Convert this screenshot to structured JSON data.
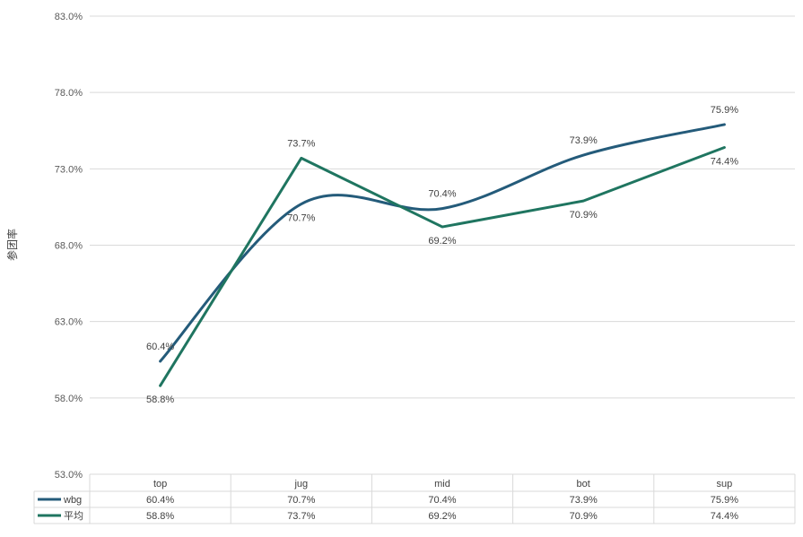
{
  "chart_data": {
    "type": "line",
    "title": "",
    "xlabel": "",
    "ylabel": "参团率",
    "categories": [
      "top",
      "jug",
      "mid",
      "bot",
      "sup"
    ],
    "yticks": [
      "53.0%",
      "58.0%",
      "63.0%",
      "68.0%",
      "73.0%",
      "78.0%",
      "83.0%"
    ],
    "ylim": [
      53,
      83
    ],
    "grid": true,
    "series": [
      {
        "name": "wbg",
        "color": "#245b7a",
        "smooth": true,
        "values": [
          60.4,
          70.7,
          70.4,
          73.9,
          75.9
        ],
        "labels": [
          "60.4%",
          "70.7%",
          "70.4%",
          "73.9%",
          "75.9%"
        ]
      },
      {
        "name": "平均",
        "color": "#1f7560",
        "smooth": false,
        "values": [
          58.8,
          73.7,
          69.2,
          70.9,
          74.4
        ],
        "labels": [
          "58.8%",
          "73.7%",
          "69.2%",
          "70.9%",
          "74.4%"
        ]
      }
    ]
  }
}
